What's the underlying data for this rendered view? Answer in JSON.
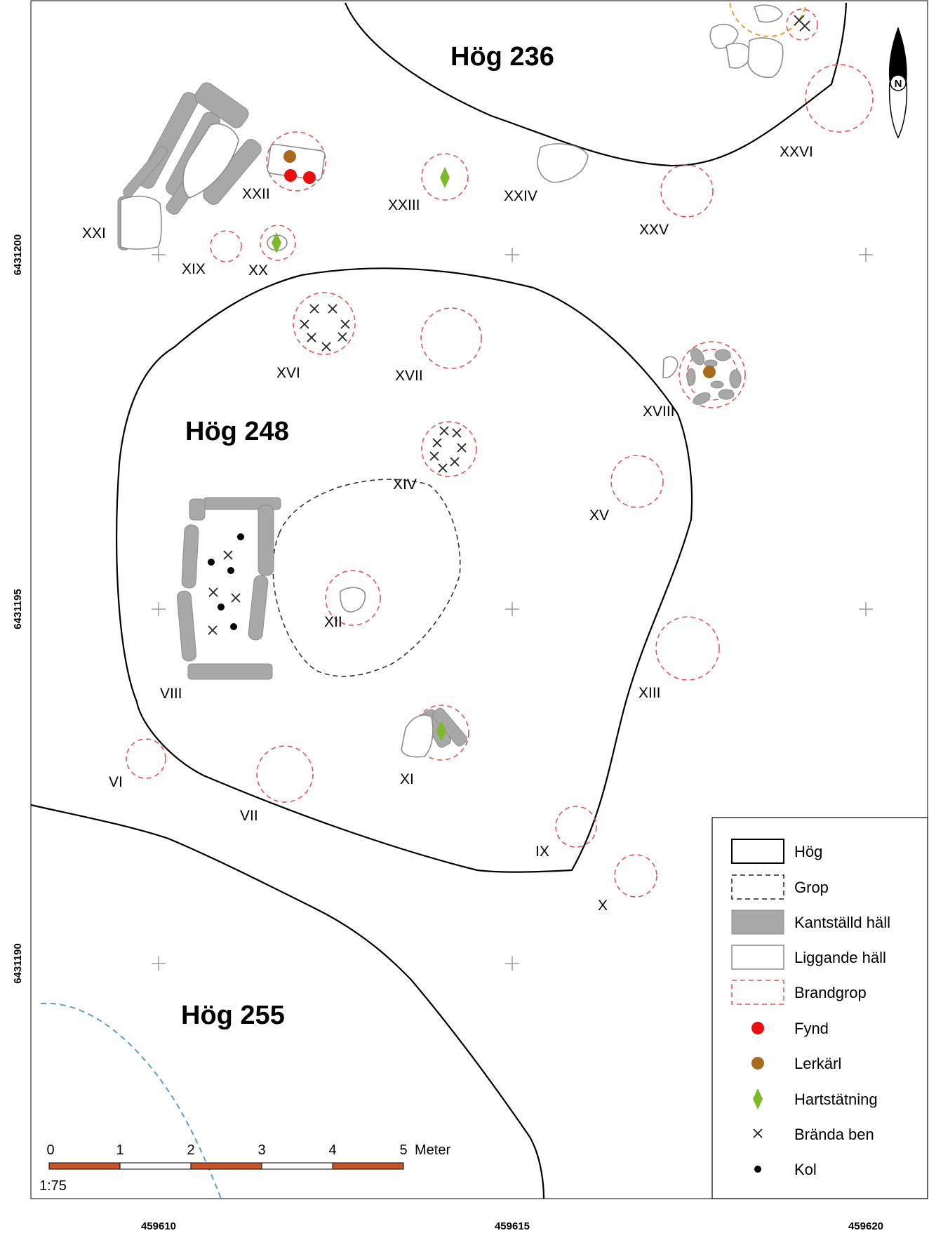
{
  "mounds": {
    "hog236": "Hög 236",
    "hog248": "Hög 248",
    "hog255": "Hög 255"
  },
  "features": {
    "VI": "VI",
    "VII": "VII",
    "VIII": "VIII",
    "IX": "IX",
    "X": "X",
    "XI": "XI",
    "XII": "XII",
    "XIII": "XIII",
    "XIV": "XIV",
    "XV": "XV",
    "XVI": "XVI",
    "XVII": "XVII",
    "XVIII": "XVIII",
    "XIX": "XIX",
    "XX": "XX",
    "XXI": "XXI",
    "XXII": "XXII",
    "XXIII": "XXIII",
    "XXIV": "XXIV",
    "XXV": "XXV",
    "XXVI": "XXVI"
  },
  "axes": {
    "x_ticks": [
      "459610",
      "459615",
      "459620"
    ],
    "y_ticks": [
      "6431200",
      "6431195",
      "6431190"
    ]
  },
  "north_arrow": {
    "label": "N"
  },
  "scalebar": {
    "ticks": [
      "0",
      "1",
      "2",
      "3",
      "4",
      "5"
    ],
    "unit": "Meter",
    "ratio": "1:75",
    "colors": [
      "#c8552a",
      "#ffffff"
    ]
  },
  "legend": {
    "items": [
      {
        "label": "Hög",
        "symbol": "mound"
      },
      {
        "label": "Grop",
        "symbol": "pit"
      },
      {
        "label": "Kantställd häll",
        "symbol": "edge-slab"
      },
      {
        "label": "Liggande häll",
        "symbol": "flat-slab"
      },
      {
        "label": "Brandgrop",
        "symbol": "burn-pit"
      },
      {
        "label": "Fynd",
        "symbol": "find-dot",
        "color": "#e8100f"
      },
      {
        "label": "Lerkärl",
        "symbol": "pot-dot",
        "color": "#a86a1c"
      },
      {
        "label": "Hartstätning",
        "symbol": "resin-diamond",
        "color": "#7cba2a"
      },
      {
        "label": "Brända ben",
        "symbol": "bone-cross"
      },
      {
        "label": "Kol",
        "symbol": "charcoal-dot"
      }
    ]
  },
  "colors": {
    "burn_pit": "#e05555",
    "edge_slab": "#a8a8a8",
    "water_line": "#5b9bd5",
    "orange_dashed": "#e8a030"
  }
}
